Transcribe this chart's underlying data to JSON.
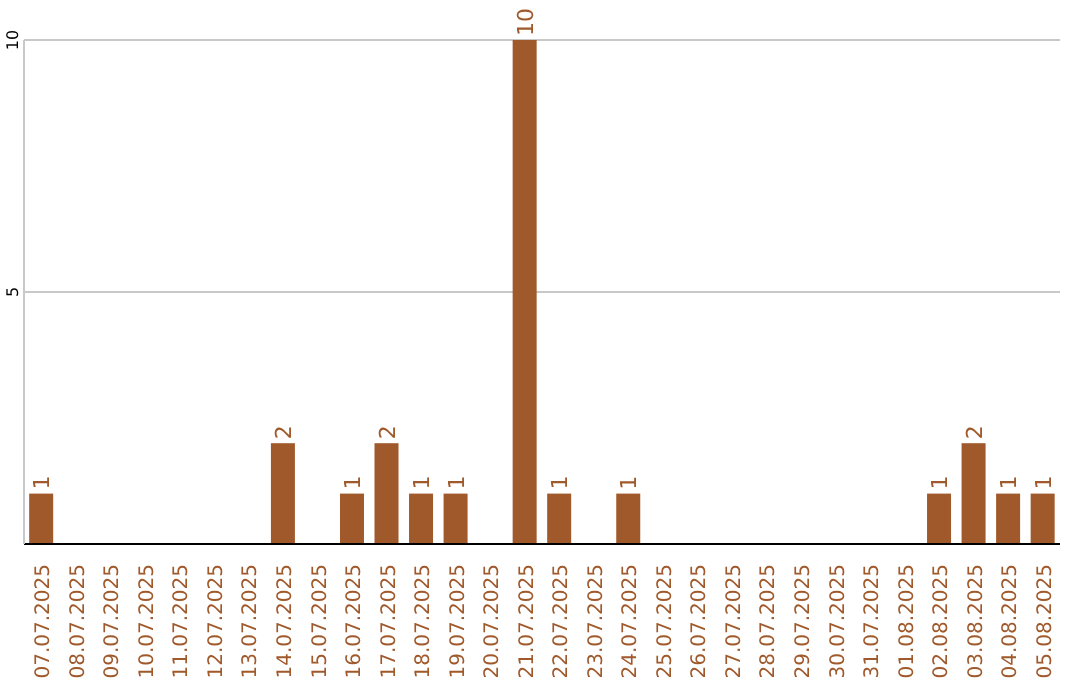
{
  "chart_data": {
    "type": "bar",
    "categories": [
      "07.07.2025",
      "08.07.2025",
      "09.07.2025",
      "10.07.2025",
      "11.07.2025",
      "12.07.2025",
      "13.07.2025",
      "14.07.2025",
      "15.07.2025",
      "16.07.2025",
      "17.07.2025",
      "18.07.2025",
      "19.07.2025",
      "20.07.2025",
      "21.07.2025",
      "22.07.2025",
      "23.07.2025",
      "24.07.2025",
      "25.07.2025",
      "26.07.2025",
      "27.07.2025",
      "28.07.2025",
      "29.07.2025",
      "30.07.2025",
      "31.07.2025",
      "01.08.2025",
      "02.08.2025",
      "03.08.2025",
      "04.08.2025",
      "05.08.2025"
    ],
    "values": [
      1,
      0,
      0,
      0,
      0,
      0,
      0,
      2,
      0,
      1,
      2,
      1,
      1,
      0,
      10,
      1,
      0,
      1,
      0,
      0,
      0,
      0,
      0,
      0,
      0,
      0,
      1,
      2,
      1,
      1
    ],
    "value_labels": [
      "1",
      null,
      null,
      null,
      null,
      null,
      null,
      "2",
      null,
      "1",
      "2",
      "1",
      "1",
      null,
      "10",
      "1",
      null,
      "1",
      null,
      null,
      null,
      null,
      null,
      null,
      null,
      null,
      "1",
      "2",
      "1",
      "1"
    ],
    "color": "#a0592b",
    "ylim": [
      0,
      10
    ],
    "yticks": [
      {
        "value": 0,
        "label": null
      },
      5,
      10
    ],
    "grid": "y"
  }
}
